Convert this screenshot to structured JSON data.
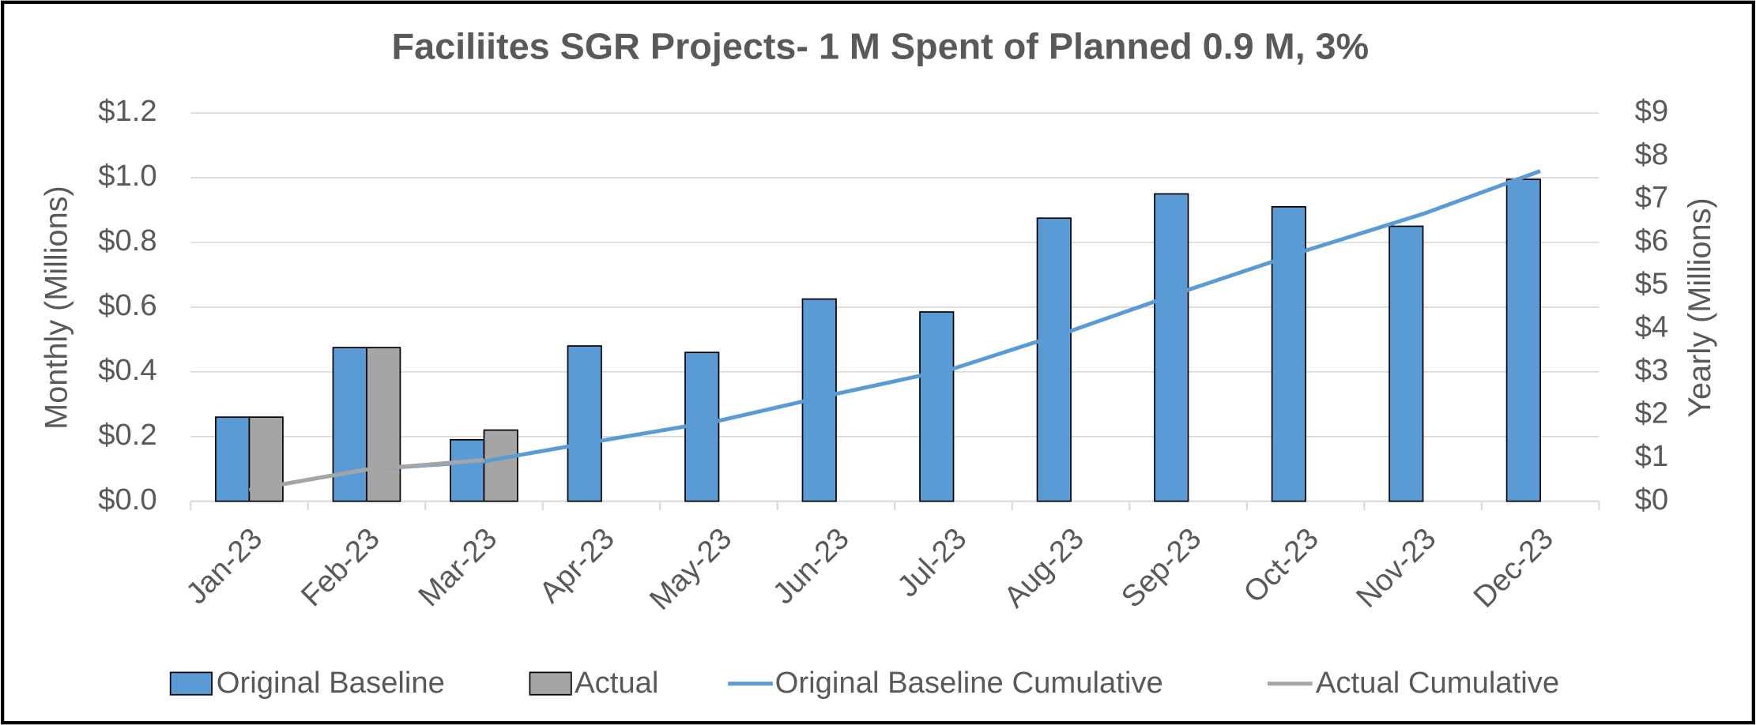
{
  "chart_data": {
    "type": "bar",
    "title": "Faciliites SGR Projects- 1 M Spent of Planned 0.9 M, 3%",
    "y_label": "Monthly (Millions)",
    "y2_label": "Yearly (Millions)",
    "categories": [
      "Jan-23",
      "Feb-23",
      "Mar-23",
      "Apr-23",
      "May-23",
      "Jun-23",
      "Jul-23",
      "Aug-23",
      "Sep-23",
      "Oct-23",
      "Nov-23",
      "Dec-23"
    ],
    "series": [
      {
        "name": "Original Baseline",
        "type": "bar",
        "color": "#5b9bd5",
        "values": [
          0.26,
          0.475,
          0.19,
          0.48,
          0.46,
          0.625,
          0.585,
          0.875,
          0.95,
          0.91,
          0.85,
          0.995
        ]
      },
      {
        "name": "Actual",
        "type": "bar",
        "color": "#a5a5a5",
        "values": [
          0.26,
          0.475,
          0.22,
          null,
          null,
          null,
          null,
          null,
          null,
          null,
          null,
          null
        ]
      },
      {
        "name": "Original Baseline Cumulative",
        "type": "line",
        "axis": "y2",
        "color": "#5b9bd5",
        "values": [
          0.26,
          0.735,
          0.925,
          1.405,
          1.865,
          2.49,
          3.075,
          3.95,
          4.9,
          5.81,
          6.66,
          7.655
        ]
      },
      {
        "name": "Actual Cumulative",
        "type": "line",
        "axis": "y2",
        "color": "#a5a5a5",
        "values": [
          0.26,
          0.735,
          0.955,
          null,
          null,
          null,
          null,
          null,
          null,
          null,
          null,
          null
        ]
      }
    ],
    "ylim": [
      0,
      1.2
    ],
    "yticks": [
      {
        "value": 0,
        "label": "$0.0"
      },
      {
        "value": 0.2,
        "label": "$0.2"
      },
      {
        "value": 0.4,
        "label": "$0.4"
      },
      {
        "value": 0.6,
        "label": "$0.6"
      },
      {
        "value": 0.8,
        "label": "$0.8"
      },
      {
        "value": 1.0,
        "label": "$1.0"
      },
      {
        "value": 1.2,
        "label": "$1.2"
      }
    ],
    "y2lim": [
      0,
      9
    ],
    "y2ticks": [
      {
        "value": 0,
        "label": "$0"
      },
      {
        "value": 1,
        "label": "$1"
      },
      {
        "value": 2,
        "label": "$2"
      },
      {
        "value": 3,
        "label": "$3"
      },
      {
        "value": 4,
        "label": "$4"
      },
      {
        "value": 5,
        "label": "$5"
      },
      {
        "value": 6,
        "label": "$6"
      },
      {
        "value": 7,
        "label": "$7"
      },
      {
        "value": 8,
        "label": "$8"
      },
      {
        "value": 9,
        "label": "$9"
      }
    ],
    "grid": true,
    "legend": "bottom"
  }
}
